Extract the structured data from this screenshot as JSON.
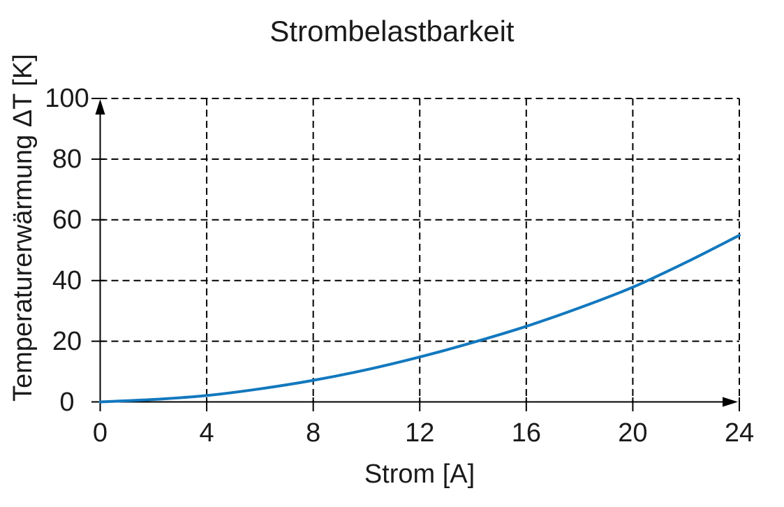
{
  "title": "Strombelastbarkeit",
  "chart_data": {
    "type": "line",
    "title": "Strombelastbarkeit",
    "xlabel": "Strom [A]",
    "ylabel": "Temperaturerwärmung ΔT [K]",
    "xlim": [
      0,
      24
    ],
    "ylim": [
      0,
      100
    ],
    "x_ticks": [
      0,
      4,
      8,
      12,
      16,
      20,
      24
    ],
    "y_ticks": [
      0,
      20,
      40,
      60,
      80,
      100
    ],
    "grid": "dashed",
    "legend": "none",
    "axis_arrows": true,
    "series": [
      {
        "name": "Temperaturerwärmung ΔT",
        "color": "#1278be",
        "x": [
          0,
          2,
          4,
          6,
          8,
          10,
          12,
          14,
          16,
          18,
          20,
          22,
          24
        ],
        "y": [
          0,
          0.8,
          2.1,
          4.3,
          7.1,
          10.6,
          14.8,
          19.6,
          24.9,
          31.0,
          37.8,
          46.0,
          54.9
        ]
      }
    ]
  },
  "colors": {
    "background": "#ffffff",
    "axis": "#000000",
    "grid": "#000000",
    "text": "#1a1a1a",
    "curve": "#1278be"
  }
}
